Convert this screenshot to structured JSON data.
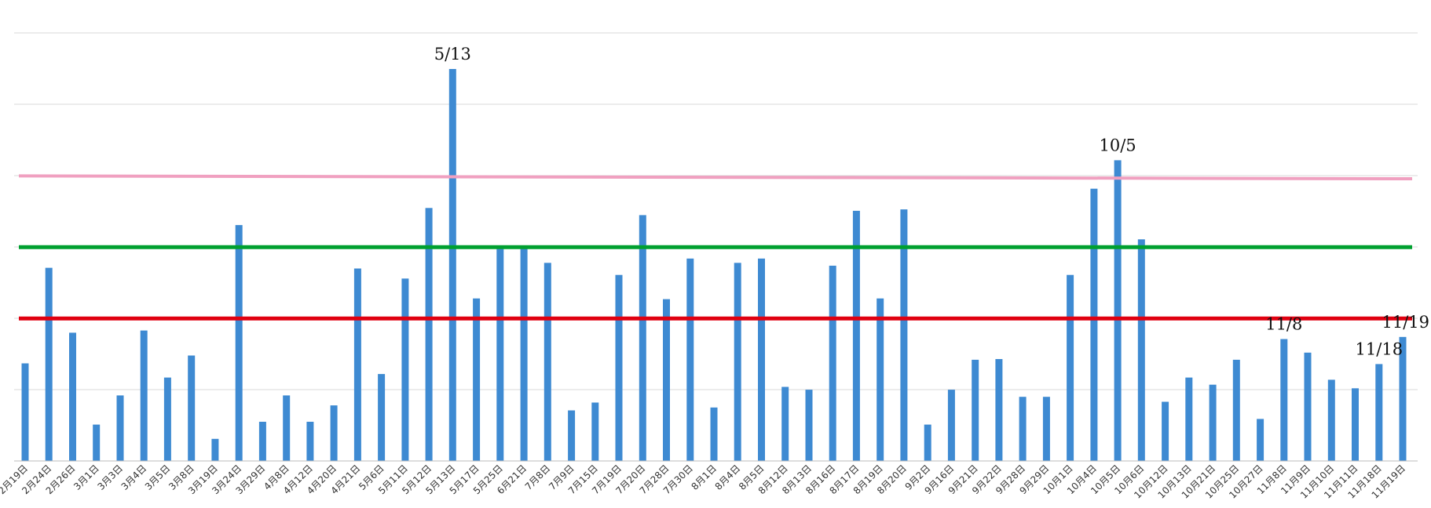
{
  "chart_data": {
    "type": "bar",
    "ylim": [
      0,
      5.5
    ],
    "grid": true,
    "categories": [
      "2月19日",
      "2月24日",
      "2月26日",
      "3月1日",
      "3月3日",
      "3月4日",
      "3月5日",
      "3月8日",
      "3月19日",
      "3月24日",
      "3月29日",
      "4月8日",
      "4月12日",
      "4月20日",
      "4月21日",
      "5月6日",
      "5月11日",
      "5月12日",
      "5月13日",
      "5月17日",
      "5月25日",
      "6月21日",
      "7月8日",
      "7月9日",
      "7月15日",
      "7月19日",
      "7月20日",
      "7月28日",
      "7月30日",
      "8月1日",
      "8月4日",
      "8月5日",
      "8月12日",
      "8月13日",
      "8月16日",
      "8月17日",
      "8月19日",
      "8月20日",
      "9月2日",
      "9月16日",
      "9月21日",
      "9月22日",
      "9月28日",
      "9月29日",
      "10月1日",
      "10月4日",
      "10月5日",
      "10月6日",
      "10月12日",
      "10月13日",
      "10月21日",
      "10月25日",
      "10月27日",
      "11月8日",
      "11月9日",
      "11月10日",
      "11月11日",
      "11月18日",
      "11月19日"
    ],
    "series": [
      {
        "color": "#3e8ad2",
        "values": [
          1.37,
          2.71,
          1.8,
          0.51,
          0.92,
          1.83,
          1.17,
          1.48,
          0.31,
          3.31,
          0.55,
          0.92,
          0.55,
          0.78,
          2.7,
          1.22,
          2.56,
          3.55,
          5.5,
          2.28,
          2.98,
          2.98,
          2.78,
          0.71,
          0.82,
          2.61,
          3.45,
          2.27,
          2.84,
          0.75,
          2.78,
          2.84,
          1.04,
          1.0,
          2.74,
          3.51,
          2.28,
          3.53,
          0.51,
          1.0,
          1.42,
          1.43,
          0.9,
          0.9,
          2.61,
          3.82,
          4.22,
          3.11,
          0.83,
          1.17,
          1.07,
          1.42,
          0.59,
          1.71,
          1.52,
          1.14,
          1.02,
          1.36,
          1.74
        ]
      }
    ],
    "reference_lines": [
      {
        "color": "#f0a0c0",
        "y_start": 4.0,
        "y_end": 3.96
      },
      {
        "color": "#00a030",
        "y_start": 3.0,
        "y_end": 3.0
      },
      {
        "color": "#e00010",
        "y_start": 2.0,
        "y_end": 2.0
      }
    ],
    "annotations": [
      {
        "text": "5/13",
        "category": "5月13日"
      },
      {
        "text": "10/5",
        "category": "10月5日"
      },
      {
        "text": "11/8",
        "category": "11月8日"
      },
      {
        "text": "11/18",
        "category": "11月18日"
      },
      {
        "text": "11/19",
        "category": "11月19日"
      }
    ]
  }
}
